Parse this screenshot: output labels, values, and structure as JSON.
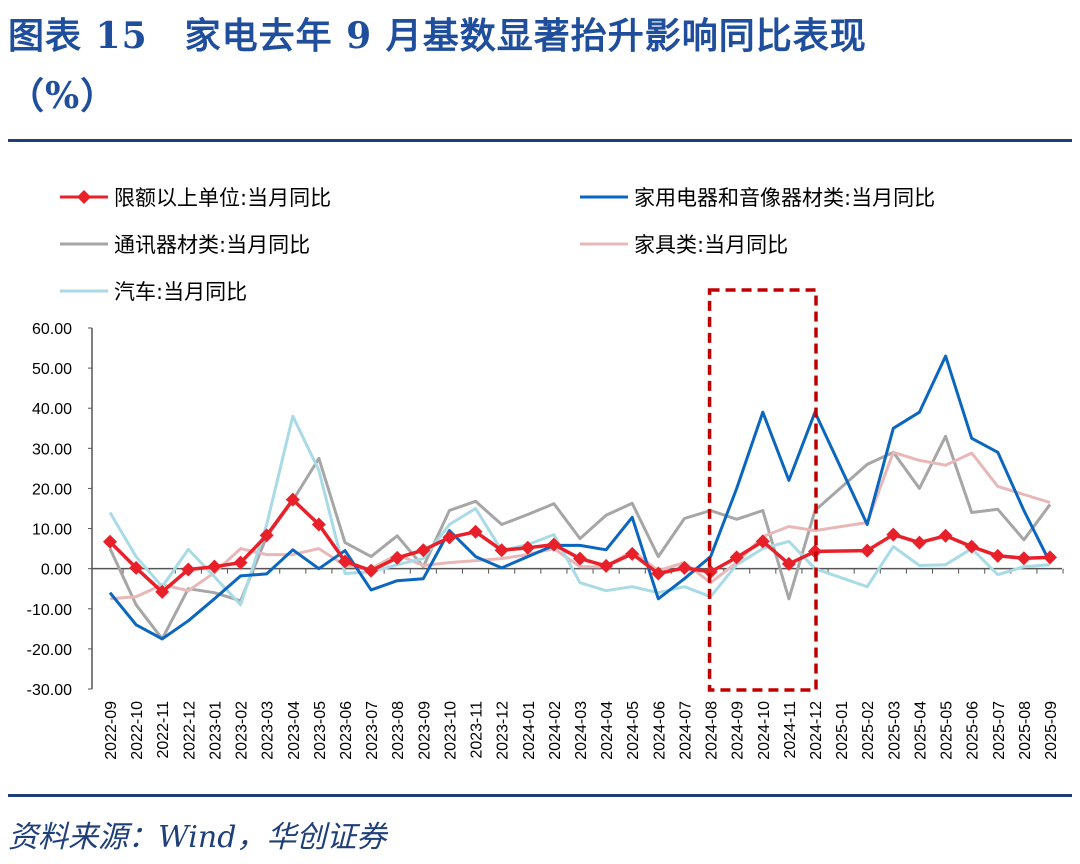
{
  "title_line1": "图表 15　家电去年 9 月基数显著抬升影响同比表现",
  "title_line2": "（%）",
  "source": "资料来源：Wind，华创证券",
  "colors": {
    "red": "#e8202a",
    "blue": "#0b66c0",
    "gray": "#a6a6a6",
    "pink": "#e8b8b8",
    "lightblue": "#a9dbe6",
    "highlight": "#c00000",
    "rule": "#1f3f7a"
  },
  "chart_data": {
    "type": "line",
    "ylim": [
      -30,
      60
    ],
    "yticks": [
      "60.00",
      "50.00",
      "40.00",
      "30.00",
      "20.00",
      "10.00",
      "0.00",
      "-10.00",
      "-20.00",
      "-30.00"
    ],
    "ytick_values": [
      60,
      50,
      40,
      30,
      20,
      10,
      0,
      -10,
      -20,
      -30
    ],
    "categories": [
      "2022-09",
      "2022-10",
      "2022-11",
      "2022-12",
      "2023-01",
      "2023-02",
      "2023-03",
      "2023-04",
      "2023-05",
      "2023-06",
      "2023-07",
      "2023-08",
      "2023-09",
      "2023-10",
      "2023-11",
      "2023-12",
      "2024-01",
      "2024-02",
      "2024-03",
      "2024-04",
      "2024-05",
      "2024-06",
      "2024-07",
      "2024-08",
      "2024-09",
      "2024-10",
      "2024-11",
      "2024-12",
      "2025-01",
      "2025-02",
      "2025-03",
      "2025-04",
      "2025-05",
      "2025-06",
      "2025-07",
      "2025-08",
      "2025-09"
    ],
    "highlight_range": [
      "2024-08",
      "2024-12"
    ],
    "series": [
      {
        "name": "限额以上单位:当月同比",
        "color": "#e8202a",
        "marker": "diamond",
        "values": [
          6.7,
          0.2,
          -5.8,
          -0.2,
          0.5,
          1.5,
          8.3,
          17.2,
          11,
          1.8,
          -0.5,
          2.7,
          4.6,
          7.8,
          9.2,
          4.6,
          5.2,
          6,
          2.5,
          0.7,
          3.7,
          -1.2,
          0.2,
          -0.8,
          2.8,
          6.8,
          1.2,
          4.3,
          null,
          4.5,
          8.5,
          6.5,
          8.2,
          5.5,
          3.2,
          2.6,
          2.8
        ]
      },
      {
        "name": "家用电器和音像器材类:当月同比",
        "color": "#0b66c0",
        "values": [
          -6,
          -14,
          -17.5,
          -13,
          -7.5,
          -1.8,
          -1.3,
          4.7,
          0,
          4.5,
          -5.3,
          -3,
          -2.5,
          9.5,
          3,
          0.2,
          3,
          5.8,
          5.8,
          4.7,
          12.8,
          -7.5,
          -2.5,
          3,
          20,
          39,
          22,
          39,
          null,
          11,
          35,
          39,
          53,
          32.5,
          29,
          14.5,
          1.5
        ]
      },
      {
        "name": "通讯器材类:当月同比",
        "color": "#a6a6a6",
        "values": [
          5,
          -9,
          -17.5,
          -5,
          -6,
          -8,
          8,
          17,
          27.5,
          6.5,
          3,
          8.2,
          0.5,
          14.5,
          16.8,
          11,
          13.5,
          16.2,
          7.5,
          13.3,
          16.3,
          3,
          12.5,
          14.5,
          12.3,
          14.5,
          -7.5,
          14.5,
          null,
          26,
          29,
          20,
          33,
          14,
          14.8,
          7.2,
          16
        ]
      },
      {
        "name": "家具类:当月同比",
        "color": "#e8b8b8",
        "values": [
          -7.5,
          -7,
          -4,
          -5.5,
          -1,
          5,
          3.5,
          3.5,
          5,
          0.8,
          0,
          3.5,
          0.8,
          1.5,
          2,
          2.5,
          3.5,
          5,
          0.5,
          0.5,
          4.5,
          -0.5,
          1.5,
          -3.5,
          1.5,
          8,
          10.5,
          9.5,
          null,
          11.5,
          29,
          27,
          25.8,
          28.8,
          20.5,
          18.5,
          16.5
        ]
      },
      {
        "name": "汽车:当月同比",
        "color": "#a9dbe6",
        "values": [
          14,
          3,
          -4.5,
          4.8,
          -2,
          -9,
          11,
          38,
          24.5,
          -1.2,
          -0.8,
          1,
          2.5,
          11,
          15,
          4.5,
          6,
          8.5,
          -3.5,
          -5.5,
          -4.5,
          -6,
          -4.5,
          -7,
          1,
          5,
          6.8,
          0,
          null,
          -4.5,
          5.5,
          0.8,
          1,
          5,
          -1.5,
          0.5,
          1
        ]
      }
    ]
  }
}
